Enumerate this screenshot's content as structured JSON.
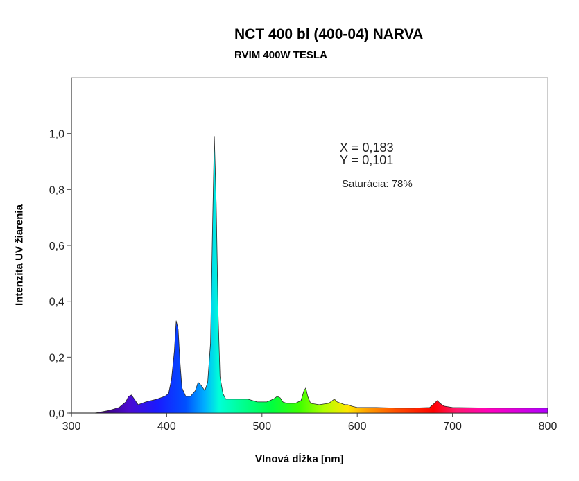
{
  "chart_data": {
    "type": "area",
    "title": "NCT 400 bl (400-04) NARVA",
    "subtitle": "RVIM 400W TESLA",
    "xlabel": "Vlnová dĺžka [nm]",
    "ylabel": "Intenzita UV žiarenia",
    "xlim": [
      300,
      800
    ],
    "ylim": [
      0,
      1.2
    ],
    "x_ticks": [
      "300",
      "400",
      "500",
      "600",
      "700",
      "800"
    ],
    "y_ticks": [
      "0,0",
      "0,2",
      "0,4",
      "0,6",
      "0,8",
      "1,0"
    ],
    "grid": false,
    "fill": "spectral color gradient",
    "series": [
      {
        "x": [
          325,
          340,
          350,
          357,
          360,
          363,
          366,
          370,
          378,
          390,
          398,
          402,
          405,
          408,
          410,
          412,
          414,
          416,
          420,
          425,
          430,
          433,
          436,
          440,
          443,
          446,
          448,
          450,
          452,
          454,
          456,
          459,
          462,
          466,
          475,
          485,
          495,
          505,
          512,
          516,
          519,
          522,
          526,
          535,
          541,
          544,
          546,
          548,
          551,
          560,
          570,
          576,
          579,
          583,
          587,
          590,
          594,
          600,
          620,
          640,
          660,
          676,
          681,
          684,
          687,
          691,
          700,
          740,
          780,
          800
        ],
        "y": [
          0.0,
          0.01,
          0.02,
          0.04,
          0.06,
          0.065,
          0.05,
          0.03,
          0.04,
          0.05,
          0.06,
          0.07,
          0.12,
          0.22,
          0.33,
          0.3,
          0.18,
          0.09,
          0.06,
          0.06,
          0.08,
          0.11,
          0.1,
          0.08,
          0.11,
          0.25,
          0.65,
          0.99,
          0.75,
          0.35,
          0.13,
          0.07,
          0.05,
          0.05,
          0.05,
          0.05,
          0.04,
          0.04,
          0.05,
          0.06,
          0.055,
          0.04,
          0.035,
          0.035,
          0.045,
          0.08,
          0.09,
          0.06,
          0.035,
          0.03,
          0.035,
          0.05,
          0.04,
          0.035,
          0.03,
          0.03,
          0.025,
          0.02,
          0.02,
          0.018,
          0.018,
          0.02,
          0.035,
          0.045,
          0.035,
          0.025,
          0.02,
          0.018,
          0.018,
          0.018
        ]
      }
    ],
    "annotations": [
      "X = 0,183",
      "Y = 0,101",
      "Saturácia: 78%"
    ]
  }
}
